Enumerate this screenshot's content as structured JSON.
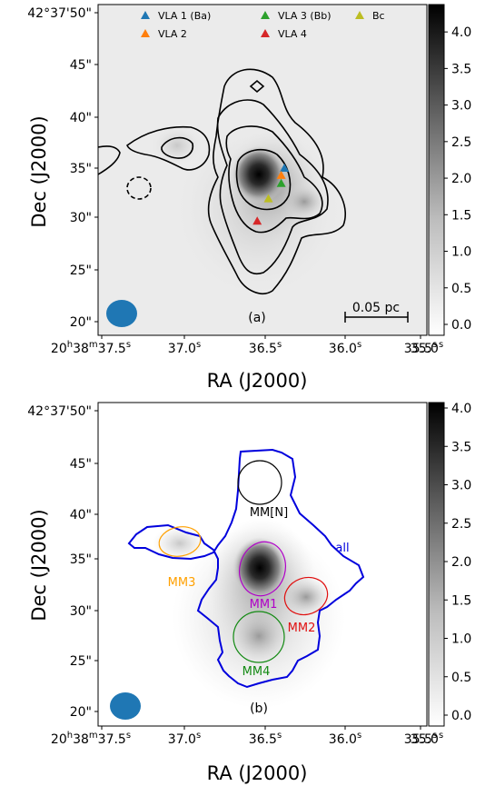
{
  "chart_data": [
    {
      "type": "heatmap",
      "panel_label": "(a)",
      "xlabel": "RA (J2000)",
      "ylabel": "Dec (J2000)",
      "x_ticks": [
        "20h38m37.5s",
        "37.0s",
        "36.5s",
        "36.0s",
        "35.5s",
        "35.0s"
      ],
      "y_ticks": [
        "42°37'50\"",
        "45\"",
        "40\"",
        "35\"",
        "30\"",
        "25\"",
        "20\""
      ],
      "colorbar": {
        "min": 0.0,
        "max": 4.3,
        "ticks": [
          "0.0",
          "0.5",
          "1.0",
          "1.5",
          "2.0",
          "2.5",
          "3.0",
          "3.5",
          "4.0"
        ]
      },
      "legend": {
        "position": "top",
        "entries": [
          {
            "name": "VLA 1 (Ba)",
            "color": "#1f77b4",
            "ra_s": 36.38,
            "dec_s": 35.0
          },
          {
            "name": "VLA 2",
            "color": "#ff7f0e",
            "ra_s": 36.4,
            "dec_s": 34.3
          },
          {
            "name": "VLA 3 (Bb)",
            "color": "#2ca02c",
            "ra_s": 36.4,
            "dec_s": 33.5
          },
          {
            "name": "VLA 4",
            "color": "#d62728",
            "ra_s": 36.55,
            "dec_s": 29.8
          },
          {
            "name": "Bc",
            "color": "#bcbd22",
            "ra_s": 36.48,
            "dec_s": 32.0
          }
        ]
      },
      "scale_bar": "0.05 pc",
      "contours": true,
      "beam_color": "#1f77b4"
    },
    {
      "type": "heatmap",
      "panel_label": "(b)",
      "xlabel": "RA (J2000)",
      "ylabel": "Dec (J2000)",
      "x_ticks": [
        "20h38m37.5s",
        "37.0s",
        "36.5s",
        "36.0s",
        "35.5s",
        "35.0s"
      ],
      "y_ticks": [
        "42°37'50\"",
        "45\"",
        "40\"",
        "35\"",
        "30\"",
        "25\"",
        "20\""
      ],
      "colorbar": {
        "min": 0.0,
        "max": 4.0,
        "ticks": [
          "0.0",
          "0.5",
          "1.0",
          "1.5",
          "2.0",
          "2.5",
          "3.0",
          "3.5",
          "4.0"
        ]
      },
      "regions": [
        {
          "name": "MM[N]",
          "color": "#000000",
          "ra_s": 36.5,
          "dec_s": 42.5
        },
        {
          "name": "MM1",
          "color": "#b000c8",
          "ra_s": 36.45,
          "dec_s": 34.2
        },
        {
          "name": "MM2",
          "color": "#e01010",
          "ra_s": 36.1,
          "dec_s": 31.5
        },
        {
          "name": "MM3",
          "color": "#ffa000",
          "ra_s": 37.2,
          "dec_s": 36.8
        },
        {
          "name": "MM4",
          "color": "#138a13",
          "ra_s": 36.5,
          "dec_s": 27.5
        },
        {
          "name": "all",
          "color": "#0000dd"
        }
      ],
      "beam_color": "#1f77b4"
    }
  ]
}
